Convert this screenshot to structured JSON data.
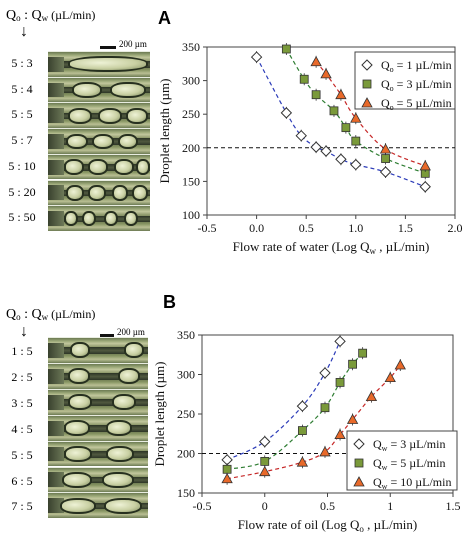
{
  "panelA": {
    "letter": "A",
    "flow_header": {
      "q1": "Q",
      "s1": "o",
      "sep": " : ",
      "q2": "Q",
      "s2": "w",
      "unit": " (µL/min)"
    },
    "arrow": "↓",
    "scale_bar": "200 µm",
    "ratios": [
      "5 : 3",
      "5 : 4",
      "5 : 5",
      "5 : 7",
      "5 : 10",
      "5 : 20",
      "5 : 50"
    ]
  },
  "panelB": {
    "letter": "B",
    "flow_header": {
      "q1": "Q",
      "s1": "o",
      "sep": " : ",
      "q2": "Q",
      "s2": "w",
      "unit": " (µL/min)"
    },
    "arrow": "↓",
    "scale_bar": "200 µm",
    "ratios": [
      "1 : 5",
      "2 : 5",
      "3 : 5",
      "4 : 5",
      "5 : 5",
      "6 : 5",
      "7 : 5"
    ]
  },
  "colors": {
    "s1": "#ffffff",
    "s2": "#7a9a3a",
    "s3": "#e8692a",
    "c1": "#2b3bb8",
    "c2": "#2e7d32",
    "c3": "#c62828"
  },
  "chart_data": [
    {
      "type": "scatter",
      "xlabel": "Flow rate of water (Log Q",
      "xlabel_sub": "w",
      "xlabel_end": " , µL/min)",
      "ylabel": "Droplet length (µm)",
      "xlim": [
        -0.5,
        2.0
      ],
      "ylim": [
        100,
        350
      ],
      "xticks": [
        "-0.5",
        "0.0",
        "0.5",
        "1.0",
        "1.5",
        "2.0"
      ],
      "yticks": [
        "100",
        "150",
        "200",
        "250",
        "300",
        "350"
      ],
      "reference_line": 200,
      "legend_position": "top-right",
      "series": [
        {
          "name": "Q",
          "name_sub": "o",
          "name_end": " = 1 µL/min",
          "marker": "diamond",
          "x": [
            0.0,
            0.3,
            0.45,
            0.6,
            0.7,
            0.85,
            1.0,
            1.3,
            1.7
          ],
          "y": [
            335,
            252,
            218,
            201,
            195,
            183,
            175,
            164,
            142
          ]
        },
        {
          "name": "Q",
          "name_sub": "o",
          "name_end": " = 3 µL/min",
          "marker": "square",
          "x": [
            0.3,
            0.48,
            0.6,
            0.78,
            0.9,
            1.0,
            1.3,
            1.7
          ],
          "y": [
            347,
            302,
            279,
            255,
            230,
            210,
            184,
            162
          ]
        },
        {
          "name": "Q",
          "name_sub": "o",
          "name_end": " = 5 µL/min",
          "marker": "triangle",
          "x": [
            0.6,
            0.7,
            0.85,
            1.0,
            1.3,
            1.7
          ],
          "y": [
            328,
            310,
            279,
            244,
            198,
            173
          ]
        }
      ]
    },
    {
      "type": "scatter",
      "xlabel": "Flow rate of oil (Log Q",
      "xlabel_sub": "o",
      "xlabel_end": " , µL/min)",
      "ylabel": "Droplet length (µm)",
      "xlim": [
        -0.5,
        1.5
      ],
      "ylim": [
        150,
        350
      ],
      "xticks": [
        "-0.5",
        "0",
        "0.5",
        "1",
        "1.5"
      ],
      "yticks": [
        "150",
        "200",
        "250",
        "300",
        "350"
      ],
      "reference_line": 200,
      "legend_position": "bottom-right",
      "series": [
        {
          "name": "Q",
          "name_sub": "w",
          "name_end": " = 3 µL/min",
          "marker": "diamond",
          "x": [
            -0.3,
            0.0,
            0.3,
            0.48,
            0.6
          ],
          "y": [
            192,
            215,
            260,
            302,
            342
          ]
        },
        {
          "name": "Q",
          "name_sub": "w",
          "name_end": " = 5 µL/min",
          "marker": "square",
          "x": [
            -0.3,
            0.0,
            0.3,
            0.48,
            0.6,
            0.7,
            0.78
          ],
          "y": [
            180,
            190,
            229,
            258,
            290,
            313,
            327
          ]
        },
        {
          "name": "Q",
          "name_sub": "w",
          "name_end": " = 10 µL/min",
          "marker": "triangle",
          "x": [
            -0.3,
            0.0,
            0.3,
            0.48,
            0.6,
            0.7,
            0.85,
            1.0,
            1.08
          ],
          "y": [
            168,
            177,
            189,
            202,
            224,
            243,
            272,
            296,
            312
          ]
        }
      ]
    }
  ]
}
